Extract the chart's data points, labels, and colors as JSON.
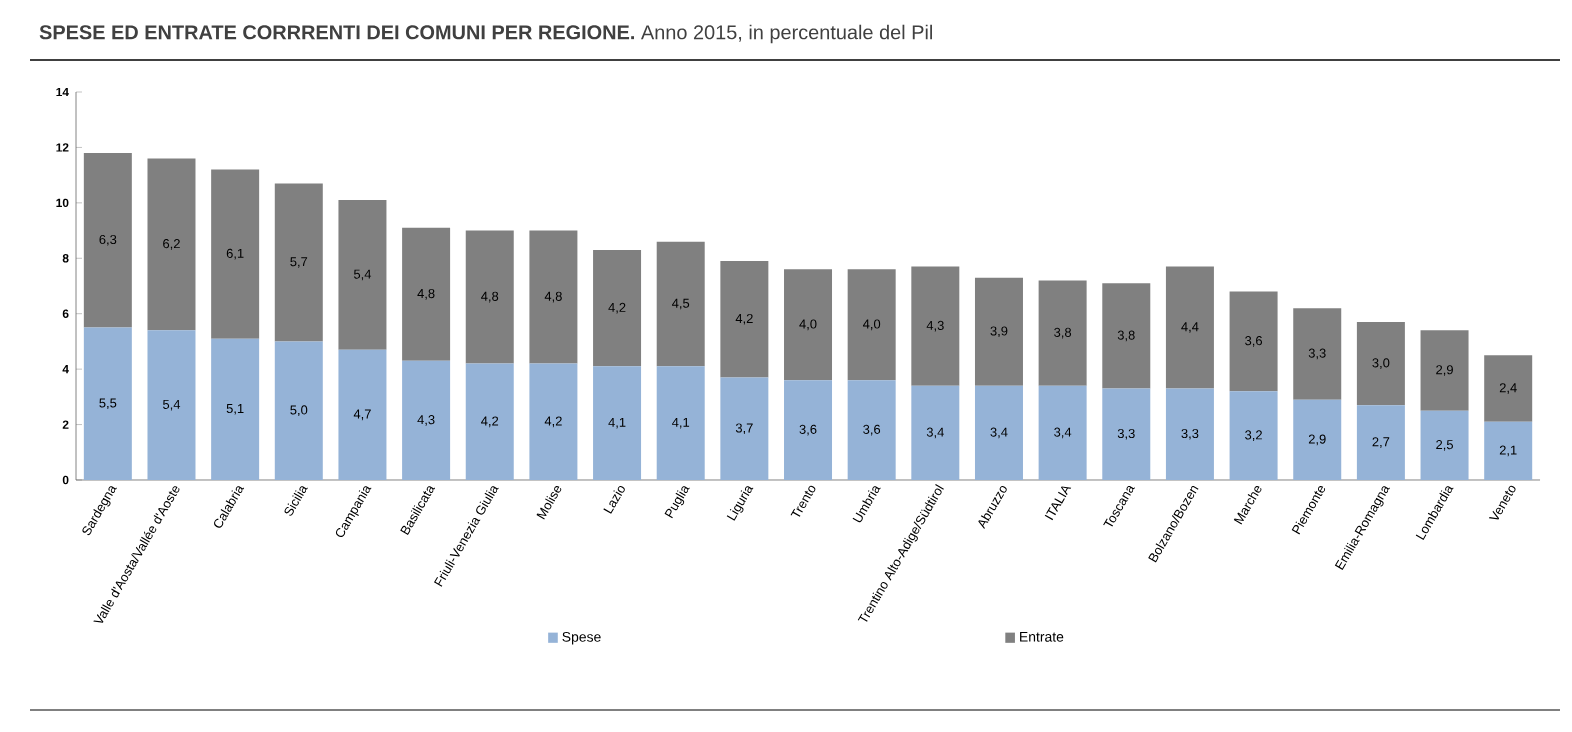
{
  "chart_data": {
    "type": "bar",
    "stacked": true,
    "title": "**SPESE ED ENTRATE CORRRENTI DEI COMUNI PER REGIONE.** Anno 2015, in percentuale del Pil",
    "categories": [
      "Sardegna",
      "Valle d'Aosta/Vallée d'Aoste",
      "Calabria",
      "Sicilia",
      "Campania",
      "Basilicata",
      "Friuli-Venezia Giulia",
      "Molise",
      "Lazio",
      "Puglia",
      "Liguria",
      "Trento",
      "Umbria",
      "Trentino Alto-Adige/Südtirol",
      "Abruzzo",
      "ITALIA",
      "Toscana",
      "Bolzano/Bozen",
      "Marche",
      "Piemonte",
      "Emilia-Romagna",
      "Lombardia",
      "Veneto"
    ],
    "series": [
      {
        "name": "Spese",
        "color": "#95b3d7",
        "values": [
          5.5,
          5.4,
          5.1,
          5.0,
          4.7,
          4.3,
          4.2,
          4.2,
          4.1,
          4.1,
          3.7,
          3.6,
          3.6,
          3.4,
          3.4,
          3.4,
          3.3,
          3.3,
          3.2,
          2.9,
          2.7,
          2.5,
          2.1
        ],
        "value_labels": [
          "5,5",
          "5,4",
          "5,1",
          "5,0",
          "4,7",
          "4,3",
          "4,2",
          "4,2",
          "4,1",
          "4,1",
          "3,7",
          "3,6",
          "3,6",
          "3,4",
          "3,4",
          "3,4",
          "3,3",
          "3,3",
          "3,2",
          "2,9",
          "2,7",
          "2,5",
          "2,1"
        ]
      },
      {
        "name": "Entrate",
        "color": "#808080",
        "values": [
          6.3,
          6.2,
          6.1,
          5.7,
          5.4,
          4.8,
          4.8,
          4.8,
          4.2,
          4.5,
          4.2,
          4.0,
          4.0,
          4.3,
          3.9,
          3.8,
          3.8,
          4.4,
          3.6,
          3.3,
          3.0,
          2.9,
          2.4
        ],
        "value_labels": [
          "6,3",
          "6,2",
          "6,1",
          "5,7",
          "5,4",
          "4,8",
          "4,8",
          "4,8",
          "4,2",
          "4,5",
          "4,2",
          "4,0",
          "4,0",
          "4,3",
          "3,9",
          "3,8",
          "3,8",
          "4,4",
          "3,6",
          "3,3",
          "3,0",
          "2,9",
          "2,4"
        ]
      }
    ],
    "ylim": [
      0,
      14
    ],
    "yticks": [
      0,
      2,
      4,
      6,
      8,
      10,
      12,
      14
    ],
    "grid": false,
    "legend": "bottom"
  }
}
